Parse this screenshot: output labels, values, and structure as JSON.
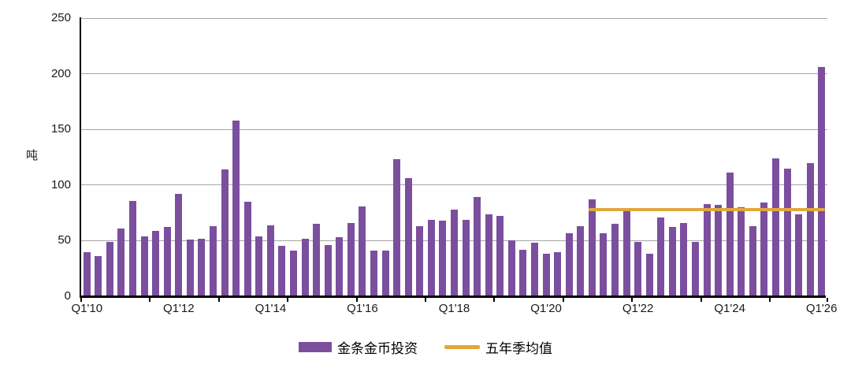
{
  "y_axis_title": "吨",
  "legend": {
    "bars_label": "金条金币投资",
    "line_label": "五年季均值"
  },
  "colors": {
    "bar": "#7b4f9e",
    "avg_line": "#e0a83e",
    "gridline": "#a6a6a6",
    "axis": "#000000",
    "text": "#1a1a1a"
  },
  "chart_data": {
    "type": "bar",
    "title": "",
    "xlabel": "",
    "ylabel": "吨",
    "ylim": [
      0,
      250
    ],
    "yticks": [
      0,
      50,
      100,
      150,
      200,
      250
    ],
    "grid": true,
    "legend_position": "bottom",
    "x_tick_labels": [
      "Q1'10",
      "Q1'12",
      "Q1'14",
      "Q1'16",
      "Q1'18",
      "Q1'20",
      "Q1'22",
      "Q1'24",
      "Q1'26"
    ],
    "categories": [
      "Q1'10",
      "Q2'10",
      "Q3'10",
      "Q4'10",
      "Q1'11",
      "Q2'11",
      "Q3'11",
      "Q4'11",
      "Q1'12",
      "Q2'12",
      "Q3'12",
      "Q4'12",
      "Q1'13",
      "Q2'13",
      "Q3'13",
      "Q4'13",
      "Q1'14",
      "Q2'14",
      "Q3'14",
      "Q4'14",
      "Q1'15",
      "Q2'15",
      "Q3'15",
      "Q4'15",
      "Q1'16",
      "Q2'16",
      "Q3'16",
      "Q4'16",
      "Q1'17",
      "Q2'17",
      "Q3'17",
      "Q4'17",
      "Q1'18",
      "Q2'18",
      "Q3'18",
      "Q4'18",
      "Q1'19",
      "Q2'19",
      "Q3'19",
      "Q4'19",
      "Q1'20",
      "Q2'20",
      "Q3'20",
      "Q4'20",
      "Q1'21",
      "Q2'21",
      "Q3'21",
      "Q4'21",
      "Q1'22",
      "Q2'22",
      "Q3'22",
      "Q4'22",
      "Q1'23",
      "Q2'23",
      "Q3'23",
      "Q4'23",
      "Q1'24",
      "Q2'24",
      "Q3'24",
      "Q4'24",
      "Q1'25",
      "Q2'25",
      "Q3'25",
      "Q4'25",
      "Q1'26"
    ],
    "series": [
      {
        "name": "金条金币投资",
        "values": [
          40,
          36,
          49,
          61,
          86,
          54,
          59,
          62,
          92,
          51,
          52,
          63,
          114,
          158,
          85,
          54,
          64,
          45,
          41,
          52,
          65,
          46,
          53,
          66,
          81,
          41,
          41,
          123,
          106,
          63,
          69,
          68,
          78,
          69,
          89,
          74,
          72,
          50,
          42,
          48,
          38,
          40,
          57,
          63,
          87,
          57,
          65,
          78,
          49,
          38,
          71,
          62,
          66,
          49,
          83,
          82,
          111,
          80,
          63,
          84,
          124,
          115,
          74,
          120,
          206
        ]
      }
    ],
    "avg_line": {
      "name": "五年季均值",
      "value": 78,
      "start_category": "Q1'21",
      "end_category": "Q1'26"
    }
  }
}
